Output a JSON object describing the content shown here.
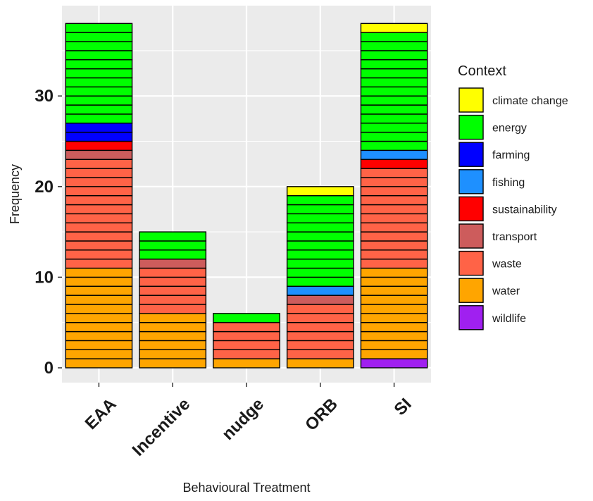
{
  "chart_data": {
    "type": "bar",
    "stacked": true,
    "title": "",
    "xlabel": "Behavioural Treatment",
    "ylabel": "Frequency",
    "categories": [
      "EAA",
      "Incentive",
      "nudge",
      "ORB",
      "SI"
    ],
    "ylim": [
      0,
      39.9
    ],
    "yticks": [
      0,
      10,
      20,
      30
    ],
    "grid": true,
    "legend": {
      "title": "Context",
      "position": "right"
    },
    "series": [
      {
        "name": "wildlife",
        "color": "#A020F0",
        "values": [
          0,
          0,
          0,
          0,
          1
        ]
      },
      {
        "name": "water",
        "color": "#FFA500",
        "values": [
          11,
          6,
          1,
          1,
          10
        ]
      },
      {
        "name": "waste",
        "color": "#FF6347",
        "values": [
          12,
          5,
          4,
          6,
          11
        ]
      },
      {
        "name": "transport",
        "color": "#CD5C5C",
        "values": [
          1,
          1,
          0,
          1,
          0
        ]
      },
      {
        "name": "sustainability",
        "color": "#FF0000",
        "values": [
          1,
          0,
          0,
          0,
          1
        ]
      },
      {
        "name": "fishing",
        "color": "#1E90FF",
        "values": [
          0,
          0,
          0,
          1,
          1
        ]
      },
      {
        "name": "farming",
        "color": "#0000FF",
        "values": [
          2,
          0,
          0,
          0,
          0
        ]
      },
      {
        "name": "energy",
        "color": "#00FF00",
        "values": [
          11,
          3,
          1,
          10,
          13
        ]
      },
      {
        "name": "climate change",
        "color": "#FFFF00",
        "values": [
          0,
          0,
          0,
          1,
          1
        ]
      }
    ],
    "legend_order": [
      "climate change",
      "energy",
      "farming",
      "fishing",
      "sustainability",
      "transport",
      "waste",
      "water",
      "wildlife"
    ]
  }
}
